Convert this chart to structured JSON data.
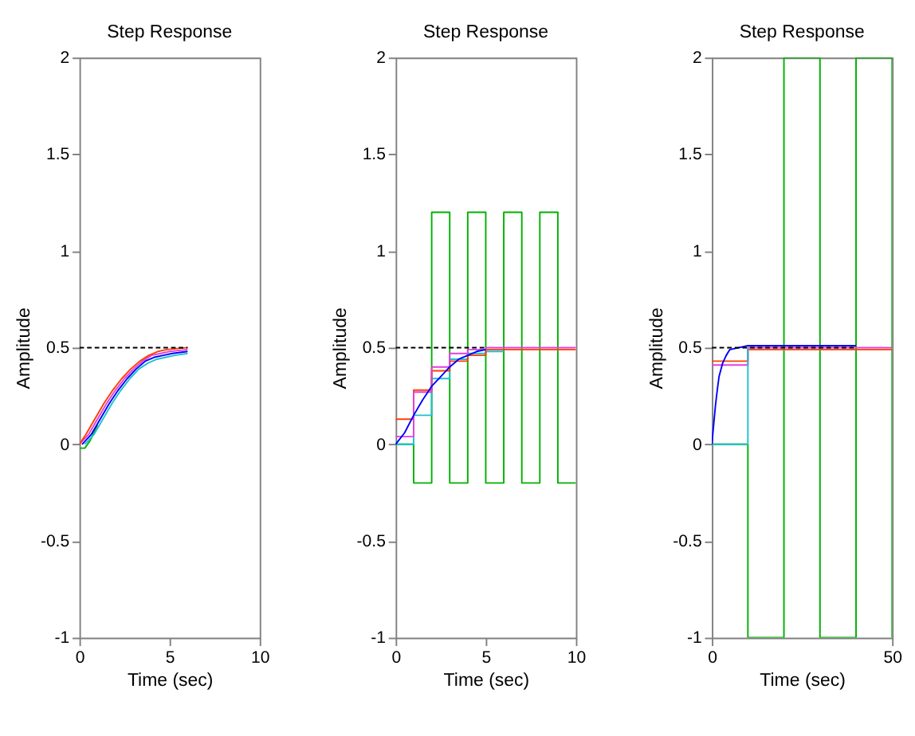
{
  "chart_data": [
    {
      "type": "line",
      "title": "Step Response",
      "xlabel": "Time (sec)",
      "ylabel": "Amplitude",
      "xlim": [
        0,
        10
      ],
      "xticks": [
        0,
        5,
        10
      ],
      "ylim": [
        -1,
        2
      ],
      "yticks": [
        -1,
        -0.5,
        0,
        0.5,
        1,
        1.5,
        2
      ],
      "grid": false,
      "series": [
        {
          "color": "#00b000",
          "x": [
            0,
            0.3,
            0.6,
            1
          ],
          "values": [
            -0.02,
            -0.02,
            0.02,
            0.1
          ]
        },
        {
          "color": "#20c0d0",
          "x": [
            0.3,
            0.8,
            1.3,
            1.8,
            2.3,
            2.8,
            3.3,
            3.8,
            4.3,
            4.8,
            5.3,
            6
          ],
          "values": [
            0,
            0.05,
            0.13,
            0.21,
            0.28,
            0.34,
            0.39,
            0.42,
            0.44,
            0.45,
            0.46,
            0.47
          ]
        },
        {
          "color": "#0000ff",
          "x": [
            0.15,
            0.65,
            1.15,
            1.65,
            2.15,
            2.65,
            3.15,
            3.65,
            4.15,
            4.65,
            5.15,
            6
          ],
          "values": [
            0,
            0.05,
            0.13,
            0.21,
            0.28,
            0.34,
            0.39,
            0.43,
            0.45,
            0.46,
            0.47,
            0.48
          ]
        },
        {
          "color": "#e040e0",
          "x": [
            0,
            0.5,
            1,
            1.5,
            2,
            2.5,
            3,
            3.5,
            4,
            4.5,
            5,
            6
          ],
          "values": [
            0,
            0.05,
            0.13,
            0.21,
            0.28,
            0.34,
            0.39,
            0.43,
            0.46,
            0.47,
            0.48,
            0.49
          ]
        },
        {
          "color": "#ff4000",
          "x": [
            0,
            0.35,
            0.85,
            1.35,
            1.85,
            2.35,
            2.85,
            3.35,
            3.85,
            4.35,
            4.85,
            6
          ],
          "values": [
            0,
            0.05,
            0.13,
            0.21,
            0.28,
            0.34,
            0.39,
            0.43,
            0.46,
            0.48,
            0.49,
            0.5
          ]
        },
        {
          "line_style": "dashed",
          "color": "#000000",
          "x": [
            0,
            6
          ],
          "values": [
            0.5,
            0.5
          ]
        }
      ]
    },
    {
      "type": "step",
      "title": "Step Response",
      "xlabel": "Time (sec)",
      "ylabel": "Amplitude",
      "xlim": [
        0,
        10
      ],
      "xticks": [
        0,
        5,
        10
      ],
      "ylim": [
        -1,
        2
      ],
      "yticks": [
        -1,
        -0.5,
        0,
        0.5,
        1,
        1.5,
        2
      ],
      "grid": false,
      "series": [
        {
          "color": "#00b000",
          "x": [
            0,
            1,
            2,
            3,
            4,
            5,
            6,
            7,
            8,
            9,
            10
          ],
          "values": [
            0,
            -0.2,
            1.2,
            -0.2,
            1.2,
            -0.2,
            1.2,
            -0.2,
            1.2,
            -0.2,
            -0.2
          ]
        },
        {
          "color": "#20c0d0",
          "x": [
            0,
            1,
            2,
            3,
            4,
            5,
            6
          ],
          "values": [
            0,
            0.15,
            0.34,
            0.44,
            0.47,
            0.48,
            0.48
          ]
        },
        {
          "color": "#ff4000",
          "x": [
            0,
            1,
            2,
            3,
            4,
            5,
            6,
            10
          ],
          "values": [
            0.13,
            0.28,
            0.38,
            0.43,
            0.46,
            0.49,
            0.49,
            0.49
          ]
        },
        {
          "color": "#e040e0",
          "x": [
            0,
            1,
            2,
            3,
            4,
            5,
            10
          ],
          "values": [
            0.04,
            0.27,
            0.4,
            0.47,
            0.49,
            0.5,
            0.5
          ]
        },
        {
          "type": "line",
          "color": "#0000ff",
          "x": [
            0,
            0.5,
            1,
            1.5,
            2,
            2.5,
            3,
            3.5,
            4,
            4.5,
            5
          ],
          "values": [
            0,
            0.06,
            0.15,
            0.23,
            0.3,
            0.35,
            0.4,
            0.44,
            0.46,
            0.48,
            0.49
          ]
        },
        {
          "type": "line",
          "line_style": "dashed",
          "color": "#000000",
          "x": [
            0,
            5
          ],
          "values": [
            0.5,
            0.5
          ]
        }
      ]
    },
    {
      "type": "step",
      "title": "Step Response",
      "xlabel": "Time (sec)",
      "ylabel": "Amplitude",
      "xlim": [
        0,
        50
      ],
      "xticks": [
        0,
        50
      ],
      "ylim": [
        -1,
        2
      ],
      "yticks": [
        -1,
        -0.5,
        0,
        0.5,
        1,
        1.5,
        2
      ],
      "grid": false,
      "series": [
        {
          "color": "#00b000",
          "x": [
            0,
            10,
            20,
            30,
            40,
            50
          ],
          "values": [
            0,
            -1,
            2,
            -1,
            2,
            -1
          ]
        },
        {
          "color": "#ff4000",
          "x": [
            0,
            10,
            50
          ],
          "values": [
            0.43,
            0.49,
            0.49
          ]
        },
        {
          "color": "#e040e0",
          "x": [
            0,
            10,
            50
          ],
          "values": [
            0.41,
            0.5,
            0.5
          ]
        },
        {
          "color": "#20c0d0",
          "x": [
            0,
            10
          ],
          "values": [
            0,
            0.5
          ]
        },
        {
          "type": "line",
          "color": "#0000ff",
          "x": [
            0,
            0.5,
            1,
            1.5,
            2,
            3,
            4,
            5,
            10,
            20,
            30,
            40
          ],
          "values": [
            0,
            0.1,
            0.2,
            0.28,
            0.35,
            0.42,
            0.46,
            0.49,
            0.51,
            0.51,
            0.51,
            0.51
          ]
        },
        {
          "type": "line",
          "line_style": "dashed",
          "color": "#000000",
          "x": [
            0,
            40
          ],
          "values": [
            0.5,
            0.5
          ]
        }
      ]
    }
  ]
}
